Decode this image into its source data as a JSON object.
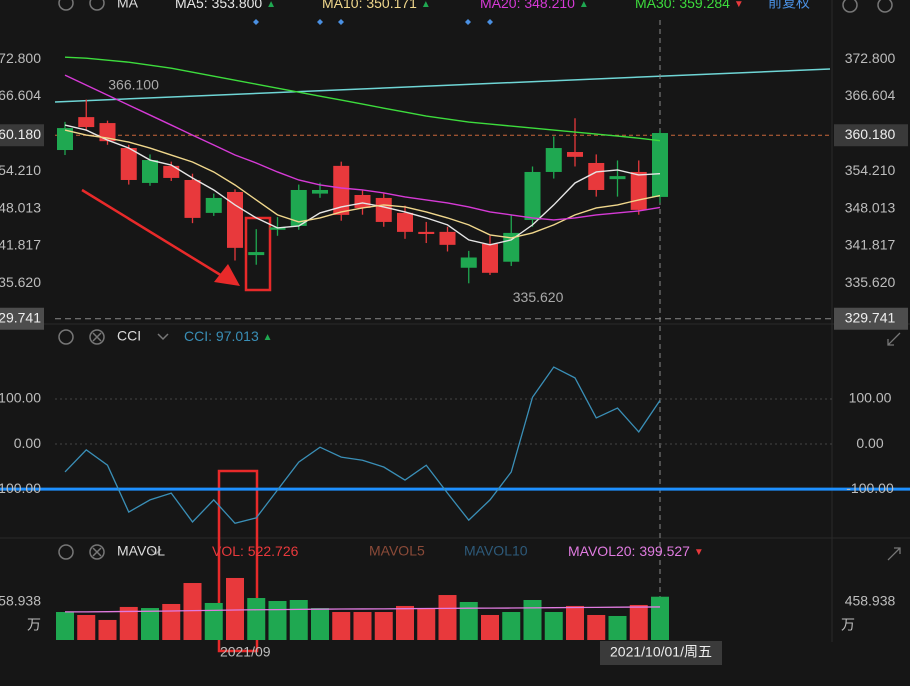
{
  "chart_data": [
    {
      "type": "candlestick",
      "title": "MA",
      "subtitle": "前复权",
      "legend_separator": ":",
      "categories": [
        null,
        null,
        null,
        null,
        null,
        null,
        null,
        null,
        null,
        "2021/09",
        null,
        null,
        null,
        null,
        null,
        null,
        null,
        null,
        null,
        null,
        null,
        null,
        null,
        null,
        null,
        null,
        null,
        null,
        "2021/10/01/周五"
      ],
      "open": [
        357.73,
        363.19,
        362.2,
        358.06,
        352.27,
        355.1,
        352.76,
        347.3,
        350.77,
        340.3,
        344.5,
        345.14,
        350.5,
        355.1,
        350.27,
        349.78,
        347.3,
        344.15,
        344.15,
        338.2,
        342.16,
        339.2,
        346.13,
        354.09,
        357.4,
        355.58,
        352.9,
        354.09,
        349.95
      ],
      "high": [
        362.4,
        366.1,
        362.6,
        358.6,
        357,
        355.8,
        353.8,
        350.5,
        351.2,
        344.6,
        346.6,
        352,
        352.3,
        355.8,
        351,
        350.5,
        348.5,
        345.8,
        345,
        341,
        343.5,
        347,
        355,
        360,
        363,
        357,
        356,
        356,
        361
      ],
      "low": [
        356.9,
        360.9,
        358.6,
        352,
        351.8,
        352.6,
        345.6,
        346.8,
        339.4,
        338.7,
        343.5,
        344.5,
        349.8,
        346,
        347,
        345,
        343,
        342.3,
        340.9,
        335.62,
        337,
        338.5,
        345,
        353,
        355,
        350,
        350,
        347,
        349
      ],
      "close": [
        361.37,
        361.54,
        359.2,
        352.76,
        356.07,
        353.1,
        346.47,
        349.78,
        341.5,
        340.8,
        344.9,
        351.1,
        351.1,
        346.97,
        348.12,
        345.8,
        344.15,
        343.8,
        342,
        339.9,
        337.36,
        343.98,
        354.09,
        358.06,
        356.6,
        351.1,
        353.4,
        347.8,
        360.55
      ],
      "up_color": "#1fa851",
      "down_color": "#e8393c",
      "series": [
        {
          "name": "MA5",
          "color": "#e6e6e6",
          "value_label": "353.800",
          "trend": "▲",
          "values": [
            361.87,
            361.04,
            359.38,
            358.06,
            356.07,
            355.24,
            353.09,
            351.1,
            348.62,
            346.47,
            344.81,
            345.14,
            347.3,
            348.29,
            348.95,
            348.29,
            347.46,
            346.47,
            345.31,
            342.82,
            342,
            342.82,
            345.31,
            348.62,
            352.26,
            354.09,
            354.42,
            353.59,
            353.8
          ]
        },
        {
          "name": "MA10",
          "color": "#f0d78c",
          "value_label": "350.171",
          "trend": "▲",
          "values": [
            361.04,
            360.21,
            359.72,
            359.05,
            358.06,
            356.9,
            355.74,
            354.09,
            351.93,
            349.45,
            346.97,
            345.8,
            346.47,
            347.46,
            348.12,
            348.62,
            348.29,
            347.46,
            346.47,
            345.31,
            343.65,
            343.15,
            343.98,
            345.31,
            346.97,
            348.12,
            348.62,
            349.45,
            350.171
          ]
        },
        {
          "name": "MA20",
          "color": "#d63ad6",
          "value_label": "348.210",
          "trend": "▲",
          "values": [
            370.15,
            368.49,
            366.84,
            365.18,
            363.53,
            361.87,
            360.21,
            358.56,
            356.9,
            355.58,
            354.09,
            352.76,
            351.93,
            351.43,
            351.1,
            350.61,
            349.94,
            349.45,
            348.95,
            348.29,
            347.46,
            346.97,
            346.47,
            346.13,
            346.47,
            346.97,
            347.3,
            347.63,
            348.21
          ]
        },
        {
          "name": "MA30",
          "color": "#3ddc3d",
          "value_label": "359.284",
          "trend": "▼",
          "values": [
            373.13,
            372.97,
            372.63,
            372.3,
            371.81,
            371.31,
            370.65,
            369.98,
            369.32,
            368.66,
            367.99,
            367.33,
            366.67,
            366.01,
            365.35,
            364.68,
            364.02,
            363.36,
            362.86,
            362.37,
            362.03,
            361.7,
            361.37,
            361.04,
            360.71,
            360.38,
            360.05,
            359.7,
            359.284
          ]
        }
      ],
      "annotations": [
        {
          "label": "366.100",
          "value": 366.1,
          "index": 1
        },
        {
          "label": "335.620",
          "value": 335.62,
          "index": 19
        }
      ],
      "ylim": [
        329.2,
        379.3
      ],
      "yticks": [
        {
          "value": 372.8,
          "label": "372.800"
        },
        {
          "value": 366.604,
          "label": "366.604"
        },
        {
          "value": 360.18,
          "label": "360.180"
        },
        {
          "value": 354.21,
          "label": "354.210"
        },
        {
          "value": 348.013,
          "label": "348.013"
        },
        {
          "value": 341.817,
          "label": "341.817"
        },
        {
          "value": 335.62,
          "label": "335.620"
        },
        {
          "value": 329.741,
          "label": "329.741"
        }
      ],
      "grid": false
    },
    {
      "type": "line",
      "title": "CCI",
      "legend_separator": ":",
      "series": [
        {
          "name": "CCI",
          "color": "#3a8fb7",
          "value_label": "97.013",
          "trend": "▲",
          "values": [
            -62,
            -13,
            -47,
            -151,
            -124,
            -109,
            -173,
            -124,
            -176,
            -164,
            -102,
            -40,
            -7,
            -29,
            -36,
            -51,
            -80,
            -47,
            -109,
            -169,
            -124,
            -62,
            104,
            171,
            147,
            58,
            80,
            27,
            97.013
          ]
        }
      ],
      "ylim": [
        -202,
        220
      ],
      "yticks": [
        {
          "value": 100,
          "label": "100.00"
        },
        {
          "value": 0,
          "label": "0.00"
        },
        {
          "value": -100,
          "label": "-100.00"
        }
      ],
      "grid": true
    },
    {
      "type": "bar",
      "title": "MAVOL",
      "unit": "万",
      "legend_separator": ":",
      "series": [
        {
          "name": "VOL",
          "color": "#e8393c",
          "value_label": "522.726",
          "values": [
            338,
            302,
            242,
            399,
            386,
            435,
            688,
            447,
            749,
            507,
            471,
            483,
            386,
            338,
            338,
            338,
            411,
            386,
            543,
            459,
            302,
            338,
            483,
            338,
            411,
            302,
            290,
            423,
            522.726
          ]
        },
        {
          "name": "MAVOL20",
          "color": "#e07be0",
          "value_label": "399.527",
          "trend": "▼",
          "values": [
            340,
            340,
            342,
            345,
            347,
            350,
            355,
            358,
            362,
            365,
            367,
            370,
            372,
            374,
            375,
            376,
            378,
            380,
            382,
            384,
            385,
            386,
            388,
            390,
            392,
            394,
            396,
            398,
            399.527
          ]
        }
      ],
      "inactive_series": [
        {
          "name": "MAVOL5",
          "color": "#8b4a38"
        },
        {
          "name": "MAVOL10",
          "color": "#2d5a7a"
        }
      ],
      "ylim": [
        0,
        966
      ],
      "yticks": [
        {
          "value": 458.938,
          "label": "458.938"
        }
      ],
      "grid": false
    }
  ]
}
